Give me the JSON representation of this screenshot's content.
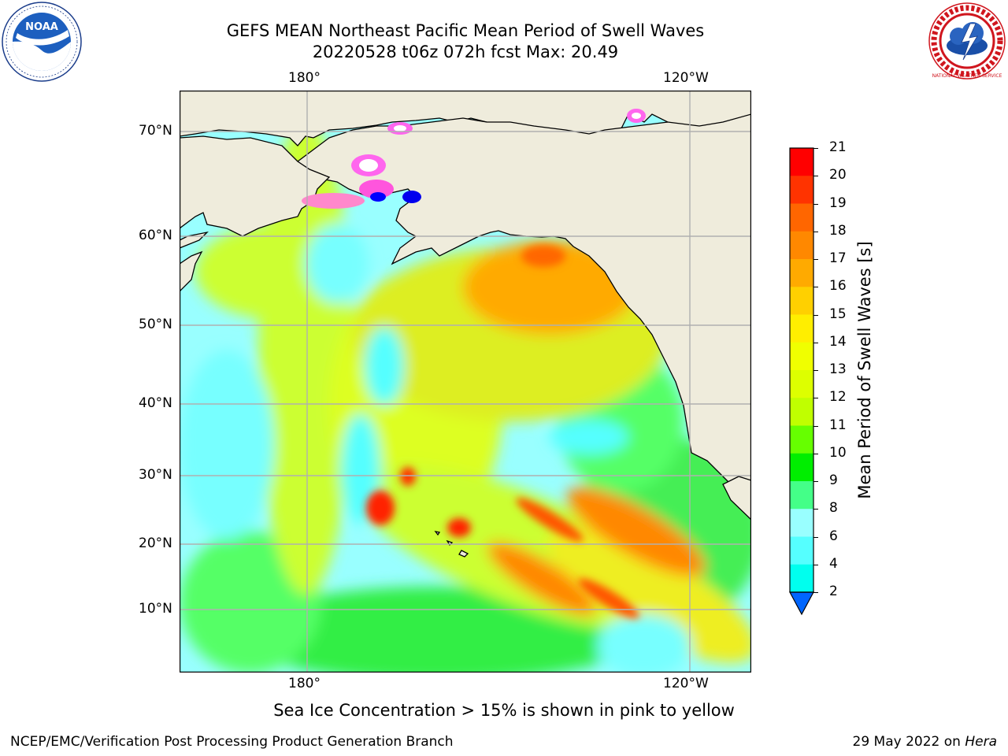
{
  "header": {
    "title": "GEFS MEAN Northeast Pacific Mean Period of Swell Waves",
    "subtitle": "20220528 t06z 072h fcst   Max: 20.49"
  },
  "logos": {
    "left": "NOAA",
    "right": "NATIONAL WEATHER SERVICE"
  },
  "map": {
    "lon_labels": [
      "180°",
      "120°W"
    ],
    "lat_labels": [
      "70°N",
      "60°N",
      "50°N",
      "40°N",
      "30°N",
      "20°N",
      "10°N"
    ],
    "colors": {
      "land": "#efecdc",
      "ocean_base": "#99ffff",
      "gridline": "#b0b0b0"
    }
  },
  "colorbar": {
    "label": "Mean Period of Swell Waves [s]",
    "ticks": [
      "21",
      "20",
      "19",
      "18",
      "17",
      "16",
      "15",
      "14",
      "13",
      "12",
      "11",
      "10",
      "9",
      "8",
      "6",
      "4",
      "2"
    ],
    "colors": [
      "#ff0000",
      "#ff3300",
      "#ff6600",
      "#ff8800",
      "#ffaa00",
      "#ffd000",
      "#ffee00",
      "#f0ff00",
      "#ddff00",
      "#c0ff00",
      "#66ff00",
      "#00ee00",
      "#44ff88",
      "#99ffff",
      "#55ffff",
      "#00ffee",
      "#00ccff",
      "#0066ff"
    ]
  },
  "caption": "Sea Ice Concentration > 15% is shown in pink to yellow",
  "footer": {
    "left": "NCEP/EMC/Verification Post Processing Product Generation Branch",
    "date": "29 May 2022 on",
    "host": "Hera"
  }
}
